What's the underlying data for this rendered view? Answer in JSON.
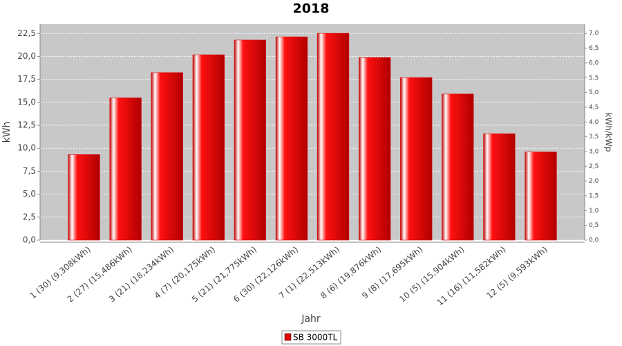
{
  "chart_data": {
    "type": "bar",
    "title": "2018",
    "x_label": "Jahr",
    "y_label": "kWh",
    "y2_label": "kWh/kWp",
    "categories": [
      "1 (30)  (9,308kWh)",
      "2 (27)  (15,486kWh)",
      "3 (21)  (18,234kWh)",
      "4 (7)  (20,175kWh)",
      "5 (21)  (21,775kWh)",
      "6 (30)  (22,126kWh)",
      "7 (1)  (22,513kWh)",
      "8 (6)  (19,876kWh)",
      "9 (8)  (17,695kWh)",
      "10 (5)  (15,904kWh)",
      "11 (16)  (11,582kWh)",
      "12 (5)  (9,593kWh)"
    ],
    "series": [
      {
        "name": "SB 3000TL",
        "color": "#e00000",
        "values": [
          9.308,
          15.486,
          18.234,
          20.175,
          21.775,
          22.126,
          22.513,
          19.876,
          17.695,
          15.904,
          11.582,
          9.593
        ]
      }
    ],
    "ylim": [
      0,
      23.5
    ],
    "yticks": [
      {
        "value": 0,
        "label": "0,0"
      },
      {
        "value": 2.5,
        "label": "2,5"
      },
      {
        "value": 5,
        "label": "5,0"
      },
      {
        "value": 7.5,
        "label": "7,5"
      },
      {
        "value": 10,
        "label": "10,0"
      },
      {
        "value": 12.5,
        "label": "12,5"
      },
      {
        "value": 15,
        "label": "15,0"
      },
      {
        "value": 17.5,
        "label": "17,5"
      },
      {
        "value": 20,
        "label": "20,0"
      },
      {
        "value": 22.5,
        "label": "22,5"
      }
    ],
    "y2lim": [
      0,
      7.31
    ],
    "y2ticks": [
      {
        "value": 0,
        "label": "0,0"
      },
      {
        "value": 0.5,
        "label": "0,5"
      },
      {
        "value": 1,
        "label": "1,0"
      },
      {
        "value": 1.5,
        "label": "1,5"
      },
      {
        "value": 2,
        "label": "2,0"
      },
      {
        "value": 2.5,
        "label": "2,5"
      },
      {
        "value": 3,
        "label": "3,0"
      },
      {
        "value": 3.5,
        "label": "3,5"
      },
      {
        "value": 4,
        "label": "4,0"
      },
      {
        "value": 4.5,
        "label": "4,5"
      },
      {
        "value": 5,
        "label": "5,0"
      },
      {
        "value": 5.5,
        "label": "5,5"
      },
      {
        "value": 6,
        "label": "6,0"
      },
      {
        "value": 6.5,
        "label": "6,5"
      },
      {
        "value": 7,
        "label": "7,0"
      }
    ],
    "grid": true
  }
}
